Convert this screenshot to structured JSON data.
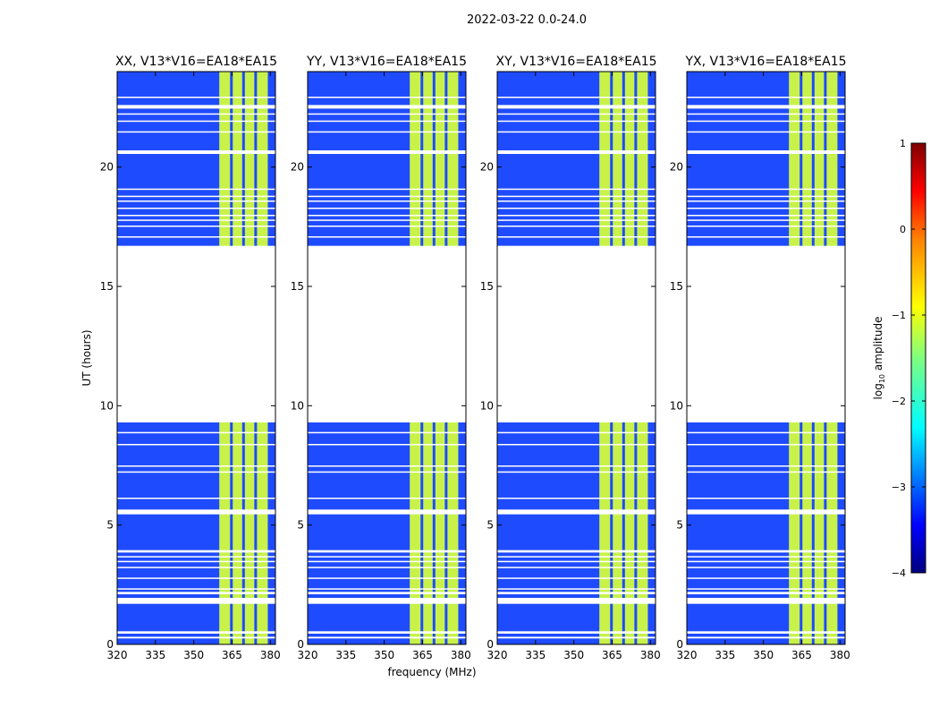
{
  "chart_data": {
    "type": "heatmap",
    "title": "2022-03-22 0.0-24.0",
    "xlabel": "frequency (MHz)",
    "ylabel": "UT (hours)",
    "xlim": [
      320,
      382
    ],
    "ylim": [
      0,
      24
    ],
    "x_ticks": [
      320,
      335,
      350,
      365,
      380
    ],
    "y_ticks": [
      0,
      5,
      10,
      15,
      20
    ],
    "panels": [
      {
        "name": "XX",
        "title": "XX, V13*V16=EA18*EA15"
      },
      {
        "name": "YY",
        "title": "YY, V13*V16=EA18*EA15"
      },
      {
        "name": "XY",
        "title": "XY, V13*V16=EA18*EA15"
      },
      {
        "name": "YX",
        "title": "YX, V13*V16=EA18*EA15"
      }
    ],
    "signal_band_mhz": [
      360,
      379
    ],
    "blank_ut_ranges": [
      [
        0.25,
        0.32
      ],
      [
        0.45,
        0.55
      ],
      [
        1.7,
        1.95
      ],
      [
        2.1,
        2.2
      ],
      [
        2.3,
        2.35
      ],
      [
        2.75,
        2.8
      ],
      [
        3.2,
        3.25
      ],
      [
        3.45,
        3.5
      ],
      [
        3.65,
        3.7
      ],
      [
        3.85,
        3.95
      ],
      [
        5.45,
        5.65
      ],
      [
        6.1,
        6.15
      ],
      [
        7.2,
        7.25
      ],
      [
        7.45,
        7.5
      ],
      [
        8.35,
        8.4
      ],
      [
        8.85,
        8.9
      ],
      [
        9.3,
        16.7
      ],
      [
        17.05,
        17.1
      ],
      [
        17.5,
        17.55
      ],
      [
        17.75,
        17.8
      ],
      [
        17.95,
        18.0
      ],
      [
        18.25,
        18.3
      ],
      [
        18.55,
        18.6
      ],
      [
        18.75,
        18.8
      ],
      [
        19.05,
        19.1
      ],
      [
        20.55,
        20.7
      ],
      [
        21.45,
        21.5
      ],
      [
        21.9,
        21.95
      ],
      [
        22.2,
        22.25
      ],
      [
        22.45,
        22.6
      ],
      [
        22.9,
        22.95
      ]
    ],
    "colorbar": {
      "label": "log10 amplitude",
      "label_base": "log",
      "label_sub": "10",
      "label_rest": " amplitude",
      "min": -4,
      "max": 1,
      "ticks": [
        1,
        0,
        -1,
        -2,
        -3,
        -4
      ],
      "tick_labels": [
        "1",
        "0",
        "−1",
        "−2",
        "−3",
        "−4"
      ]
    }
  }
}
